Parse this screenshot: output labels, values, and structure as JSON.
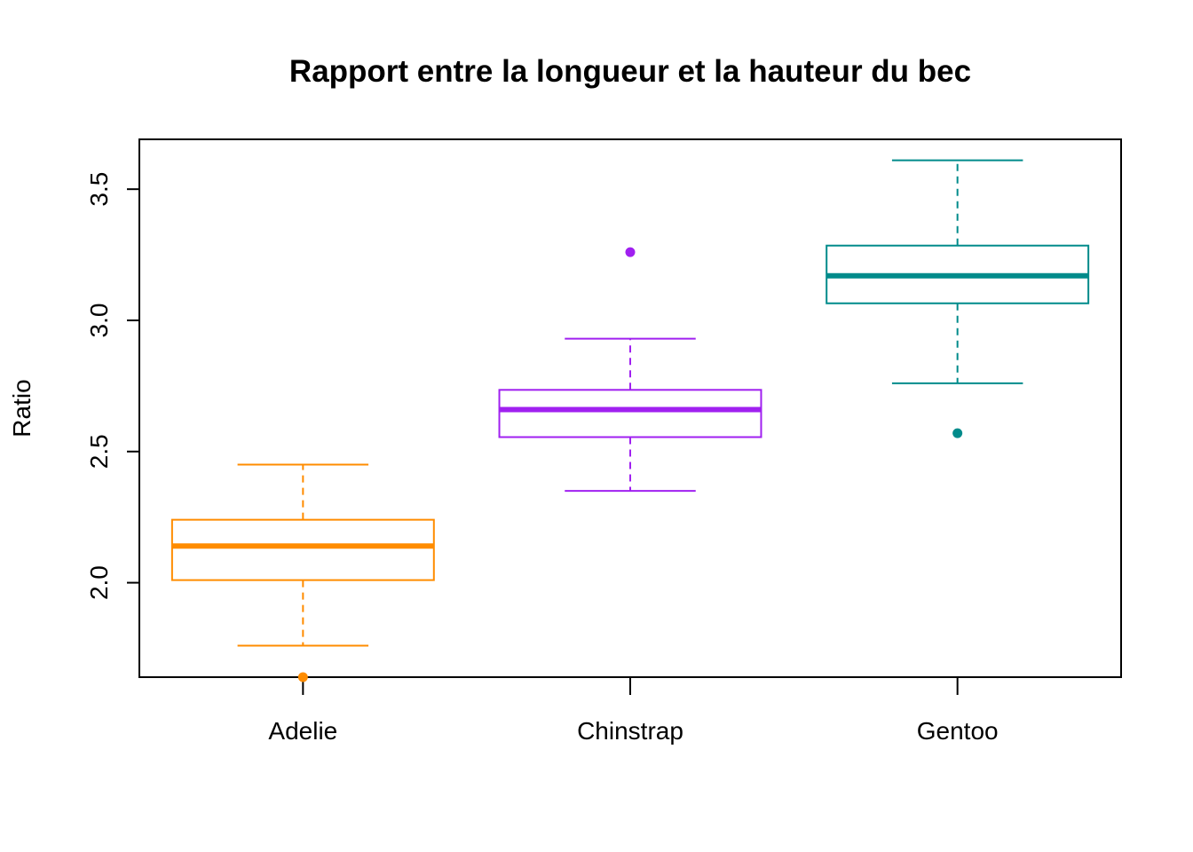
{
  "chart_data": {
    "type": "boxplot",
    "title": "Rapport entre la longueur et la hauteur du bec",
    "xlabel": "",
    "ylabel": "Ratio",
    "ylim": [
      1.64,
      3.69
    ],
    "y_ticks": [
      "2.0",
      "2.5",
      "3.0",
      "3.5"
    ],
    "grid": false,
    "categories": [
      "Adelie",
      "Chinstrap",
      "Gentoo"
    ],
    "boxes": [
      {
        "category": "Adelie",
        "color": "#FF8C00",
        "whisker_low": 1.76,
        "q1": 2.01,
        "median": 2.14,
        "q3": 2.24,
        "whisker_high": 2.45,
        "outliers": [
          1.64
        ]
      },
      {
        "category": "Chinstrap",
        "color": "#A020F0",
        "whisker_low": 2.35,
        "q1": 2.555,
        "median": 2.66,
        "q3": 2.735,
        "whisker_high": 2.93,
        "outliers": [
          3.26
        ]
      },
      {
        "category": "Gentoo",
        "color": "#008B8B",
        "whisker_low": 2.76,
        "q1": 3.065,
        "median": 3.17,
        "q3": 3.285,
        "whisker_high": 3.61,
        "outliers": [
          2.57
        ]
      }
    ]
  }
}
